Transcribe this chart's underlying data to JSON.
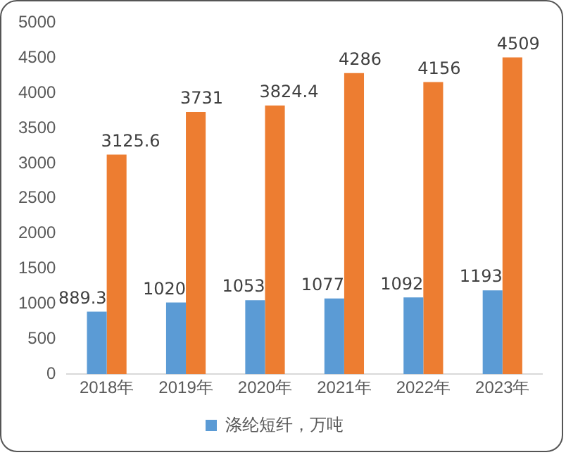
{
  "chart_data": {
    "type": "bar",
    "categories": [
      "2018年",
      "2019年",
      "2020年",
      "2021年",
      "2022年",
      "2023年"
    ],
    "series": [
      {
        "name": "涤纶短纤，万吨",
        "color": "#5b9bd5",
        "values": [
          889.3,
          1020,
          1053,
          1077,
          1092,
          1193
        ]
      },
      {
        "color": "#ed7d31",
        "values": [
          3125.6,
          3731,
          3824.4,
          4286,
          4156,
          4509
        ]
      }
    ],
    "ylim": [
      0,
      5000
    ],
    "yticks": [
      0,
      500,
      1000,
      1500,
      2000,
      2500,
      3000,
      3500,
      4000,
      4500,
      5000
    ],
    "grid": false,
    "legend": "bottom",
    "data_labels": true
  }
}
